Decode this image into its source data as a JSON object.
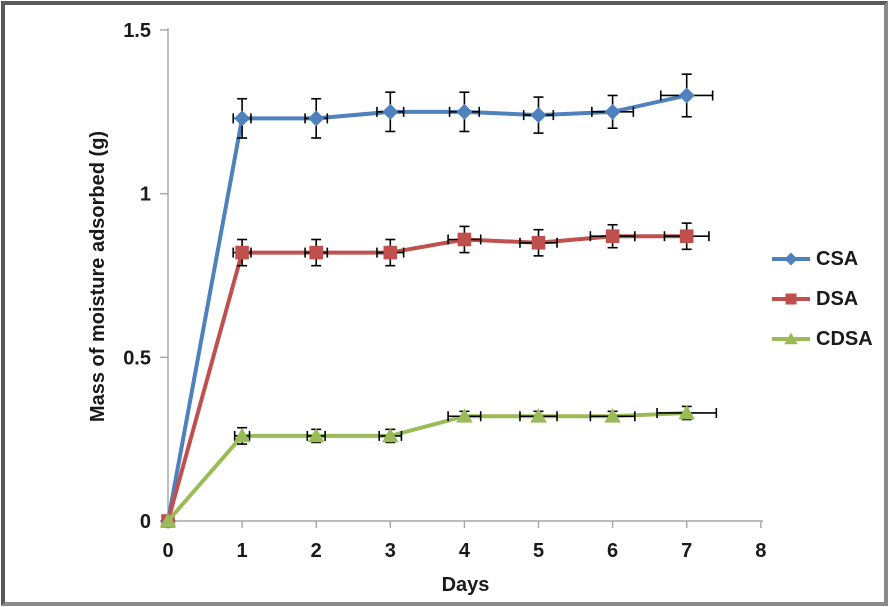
{
  "figure": {
    "background": "#FFFFFF",
    "frame_color": "#5A5A5A"
  },
  "chart_data": {
    "type": "line",
    "title": "",
    "xlabel": "Days",
    "ylabel": "Mass of moisture adsorbed (g)",
    "xlim": [
      0,
      8
    ],
    "ylim": [
      0,
      1.5
    ],
    "grid": false,
    "legend_position": "right-middle",
    "axis_color": "#A6A6A6",
    "error_bar_color": "#000000",
    "text_color": "#1A1A1A",
    "x_ticks": [
      {
        "value": 0,
        "label": "0"
      },
      {
        "value": 1,
        "label": "1"
      },
      {
        "value": 2,
        "label": "2"
      },
      {
        "value": 3,
        "label": "3"
      },
      {
        "value": 4,
        "label": "4"
      },
      {
        "value": 5,
        "label": "5"
      },
      {
        "value": 6,
        "label": "6"
      },
      {
        "value": 7,
        "label": "7"
      },
      {
        "value": 8,
        "label": "8"
      }
    ],
    "y_ticks": [
      {
        "value": 0,
        "label": "0"
      },
      {
        "value": 0.5,
        "label": "0.5"
      },
      {
        "value": 1,
        "label": "1"
      },
      {
        "value": 1.5,
        "label": "1.5"
      }
    ],
    "x": [
      0,
      1,
      2,
      3,
      4,
      5,
      6,
      7
    ],
    "series": [
      {
        "name": "CSA",
        "color": "#4F81BD",
        "marker": "diamond",
        "values": [
          0,
          1.23,
          1.23,
          1.25,
          1.25,
          1.24,
          1.25,
          1.3
        ],
        "y_err": [
          0,
          0.06,
          0.06,
          0.06,
          0.06,
          0.055,
          0.05,
          0.065
        ],
        "x_err": [
          0,
          0.12,
          0.15,
          0.18,
          0.2,
          0.2,
          0.28,
          0.35
        ]
      },
      {
        "name": "DSA",
        "color": "#C0504D",
        "marker": "square",
        "values": [
          0,
          0.82,
          0.82,
          0.82,
          0.86,
          0.85,
          0.87,
          0.87
        ],
        "y_err": [
          0,
          0.04,
          0.04,
          0.04,
          0.04,
          0.04,
          0.035,
          0.04
        ],
        "x_err": [
          0,
          0.12,
          0.15,
          0.18,
          0.22,
          0.25,
          0.3,
          0.3
        ]
      },
      {
        "name": "CDSA",
        "color": "#9BBB59",
        "marker": "triangle",
        "values": [
          0,
          0.26,
          0.26,
          0.26,
          0.32,
          0.32,
          0.32,
          0.33
        ],
        "y_err": [
          0,
          0.025,
          0.02,
          0.02,
          0.015,
          0.015,
          0.015,
          0.02
        ],
        "x_err": [
          0,
          0.1,
          0.12,
          0.15,
          0.22,
          0.25,
          0.3,
          0.4
        ]
      }
    ]
  }
}
